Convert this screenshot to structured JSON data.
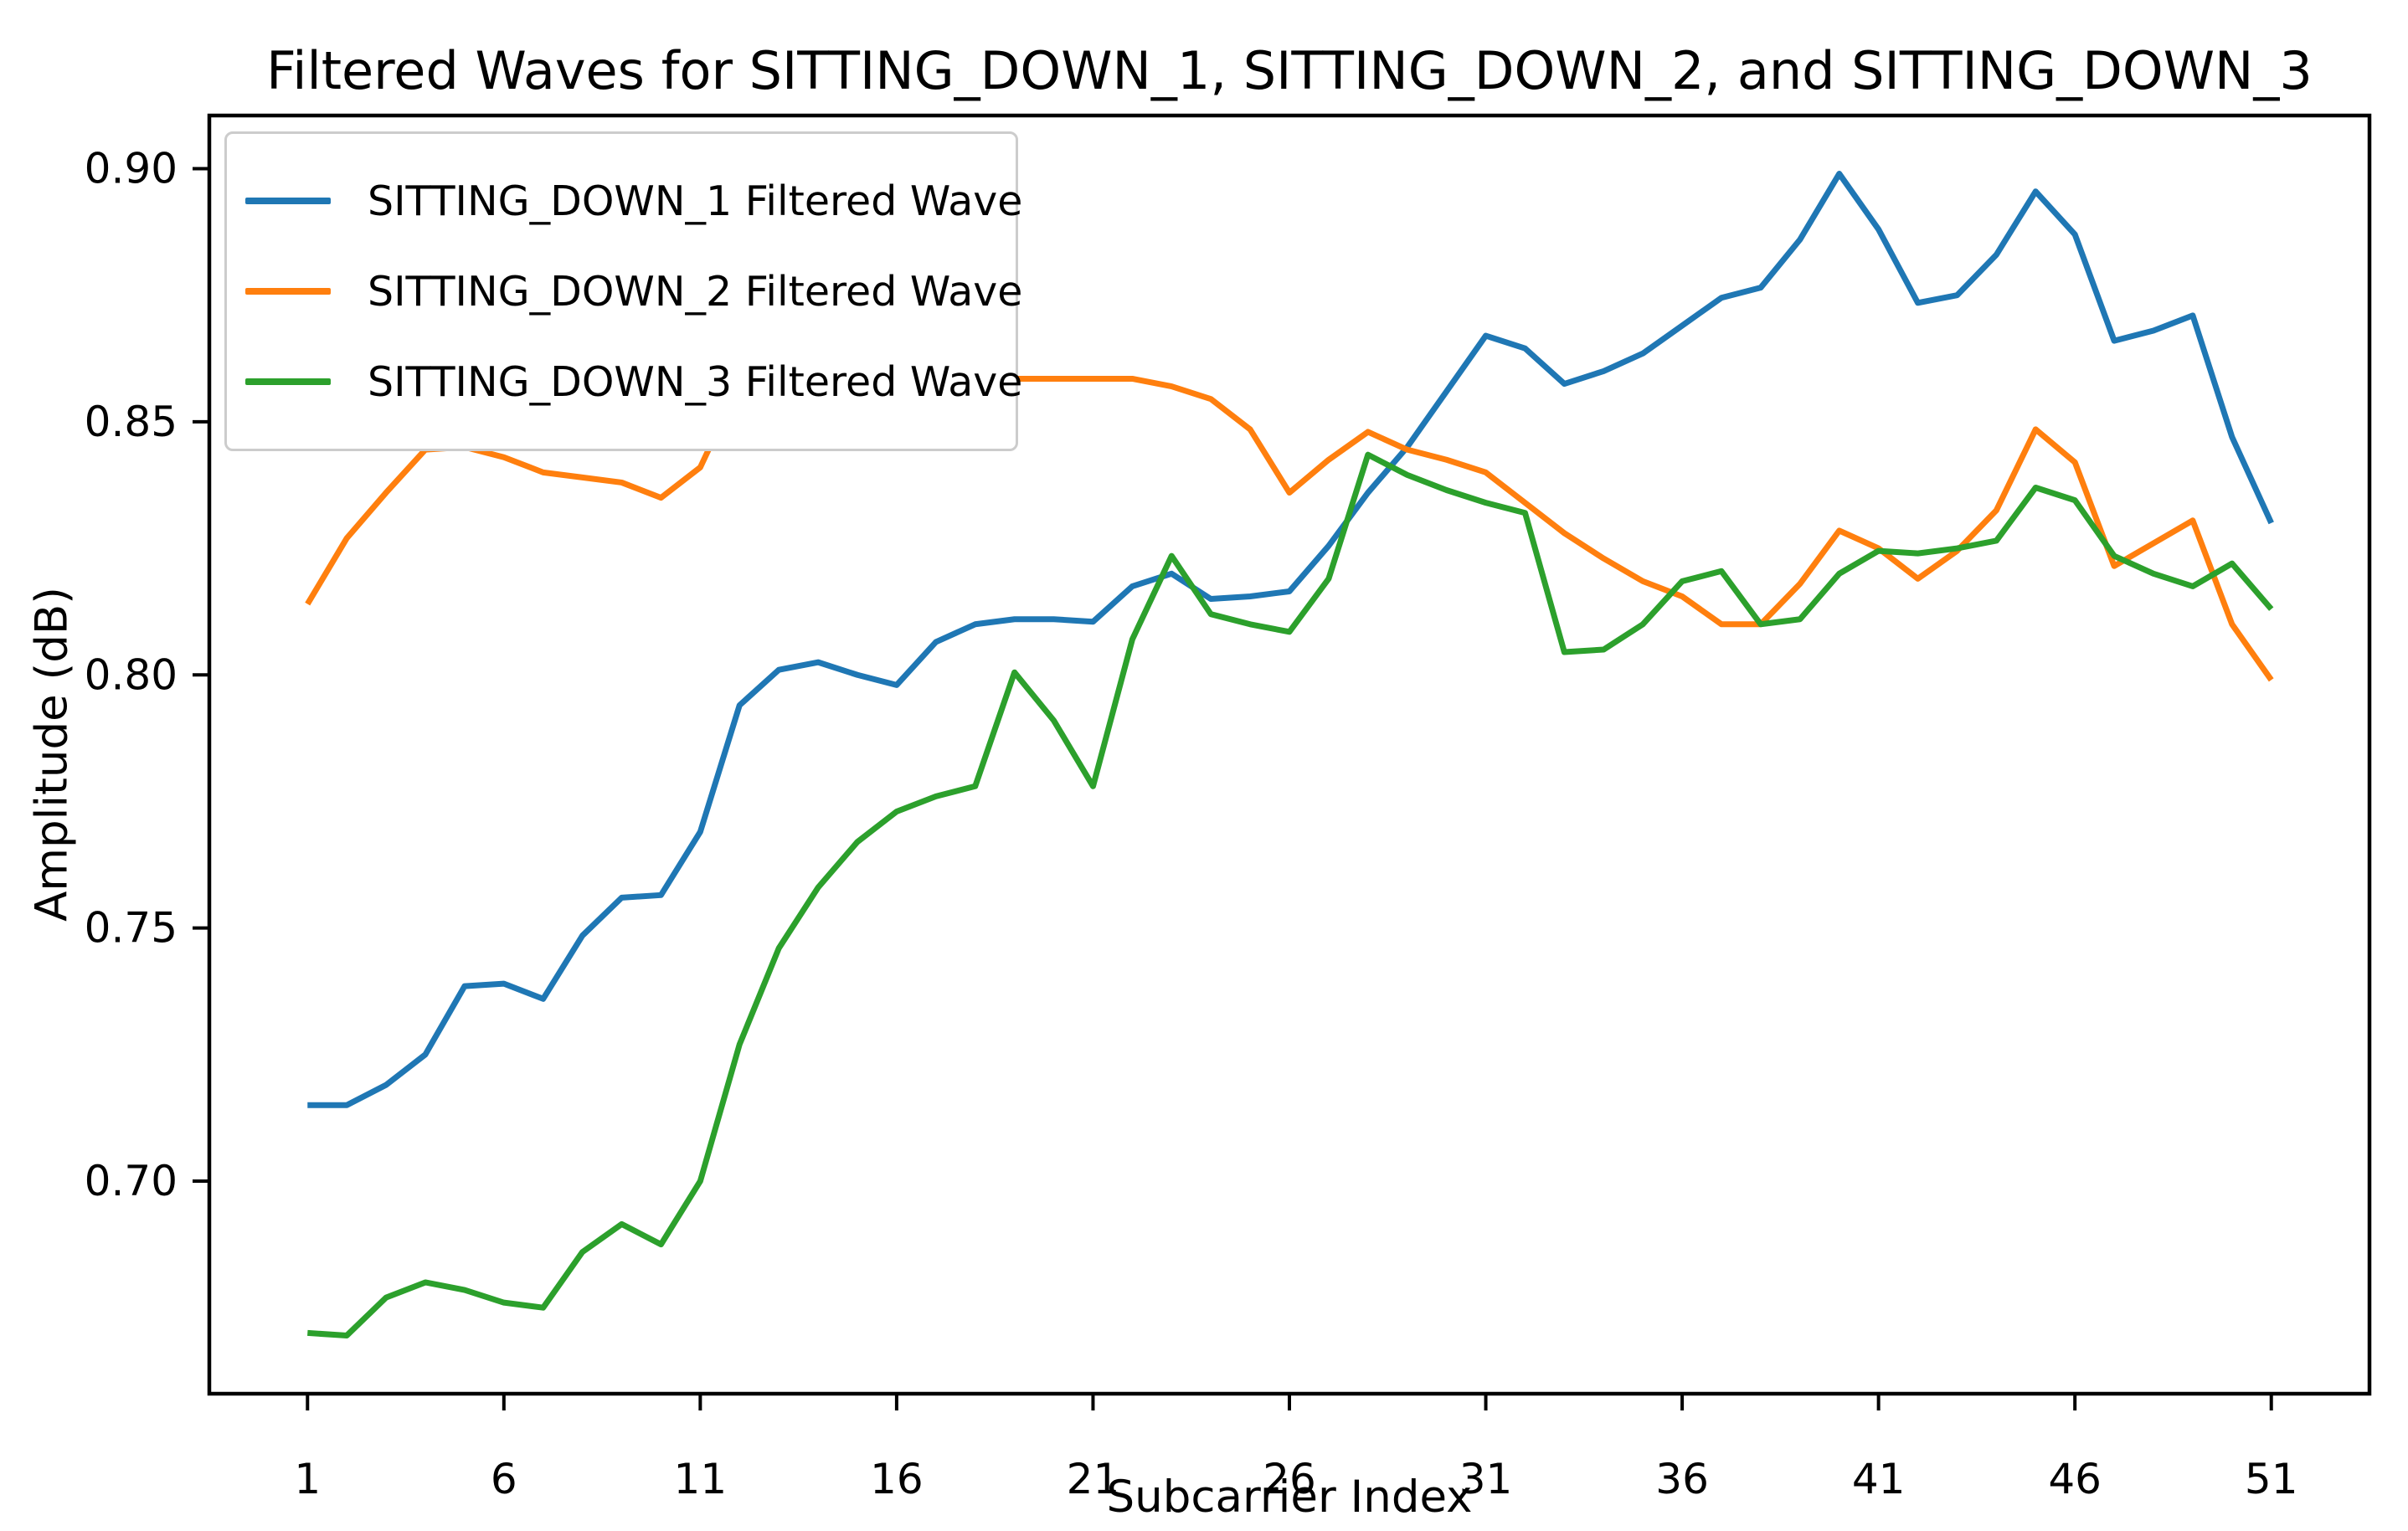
{
  "chart_data": {
    "type": "line",
    "title": "Filtered Waves for SITTING_DOWN_1, SITTING_DOWN_2, and SITTING_DOWN_3",
    "xlabel": "Subcarrier Index",
    "ylabel": "Amplitude (dB)",
    "grid": false,
    "legend_position": "upper left",
    "xlim": [
      -1.5,
      53.5
    ],
    "ylim": [
      0.658,
      0.9105
    ],
    "xticks": [
      1,
      6,
      11,
      16,
      21,
      26,
      31,
      36,
      41,
      46,
      51
    ],
    "yticks": [
      0.7,
      0.75,
      0.8,
      0.85,
      0.9
    ],
    "ytick_labels": [
      "0.70",
      "0.75",
      "0.80",
      "0.85",
      "0.90"
    ],
    "x": [
      1,
      2,
      3,
      4,
      5,
      6,
      7,
      8,
      9,
      10,
      11,
      12,
      13,
      14,
      15,
      16,
      17,
      18,
      19,
      20,
      21,
      22,
      23,
      24,
      25,
      26,
      27,
      28,
      29,
      30,
      31,
      32,
      33,
      34,
      35,
      36,
      37,
      38,
      39,
      40,
      41,
      42,
      43,
      44,
      45,
      46,
      47,
      48,
      49,
      50,
      51
    ],
    "series": [
      {
        "name": "SITTING_DOWN_1 Filtered Wave",
        "color": "#1f77b4",
        "values": [
          0.715,
          0.715,
          0.719,
          0.725,
          0.7385,
          0.739,
          0.736,
          0.7485,
          0.756,
          0.7565,
          0.769,
          0.794,
          0.801,
          0.8025,
          0.8,
          0.798,
          0.8065,
          0.81,
          0.811,
          0.811,
          0.8105,
          0.8175,
          0.82,
          0.815,
          0.8155,
          0.8165,
          0.8255,
          0.836,
          0.845,
          0.856,
          0.867,
          0.8645,
          0.8575,
          0.86,
          0.8635,
          0.869,
          0.8745,
          0.8765,
          0.886,
          0.899,
          0.888,
          0.8735,
          0.875,
          0.883,
          0.8955,
          0.887,
          0.866,
          0.868,
          0.871,
          0.847,
          0.83
        ]
      },
      {
        "name": "SITTING_DOWN_2 Filtered Wave",
        "color": "#ff7f0e",
        "values": [
          0.814,
          0.827,
          0.836,
          0.8445,
          0.845,
          0.843,
          0.84,
          0.839,
          0.838,
          0.835,
          0.841,
          0.8575,
          0.8585,
          0.856,
          0.8485,
          0.846,
          0.851,
          0.857,
          0.8585,
          0.8585,
          0.8585,
          0.8585,
          0.857,
          0.8545,
          0.8485,
          0.836,
          0.8425,
          0.848,
          0.8445,
          0.8425,
          0.84,
          0.834,
          0.828,
          0.823,
          0.8185,
          0.8155,
          0.81,
          0.81,
          0.818,
          0.8285,
          0.825,
          0.819,
          0.8245,
          0.8325,
          0.8485,
          0.842,
          0.8215,
          0.826,
          0.8305,
          0.81,
          0.799
        ]
      },
      {
        "name": "SITTING_DOWN_3 Filtered Wave",
        "color": "#2ca02c",
        "values": [
          0.67,
          0.6695,
          0.677,
          0.68,
          0.6785,
          0.676,
          0.675,
          0.686,
          0.6915,
          0.6875,
          0.7,
          0.727,
          0.746,
          0.758,
          0.767,
          0.773,
          0.776,
          0.778,
          0.8005,
          0.791,
          0.778,
          0.807,
          0.8235,
          0.812,
          0.81,
          0.8085,
          0.819,
          0.8435,
          0.8395,
          0.8365,
          0.834,
          0.832,
          0.8045,
          0.805,
          0.81,
          0.8185,
          0.8205,
          0.81,
          0.811,
          0.82,
          0.8245,
          0.824,
          0.825,
          0.8265,
          0.837,
          0.8345,
          0.8235,
          0.82,
          0.8175,
          0.822,
          0.813
        ]
      }
    ]
  }
}
